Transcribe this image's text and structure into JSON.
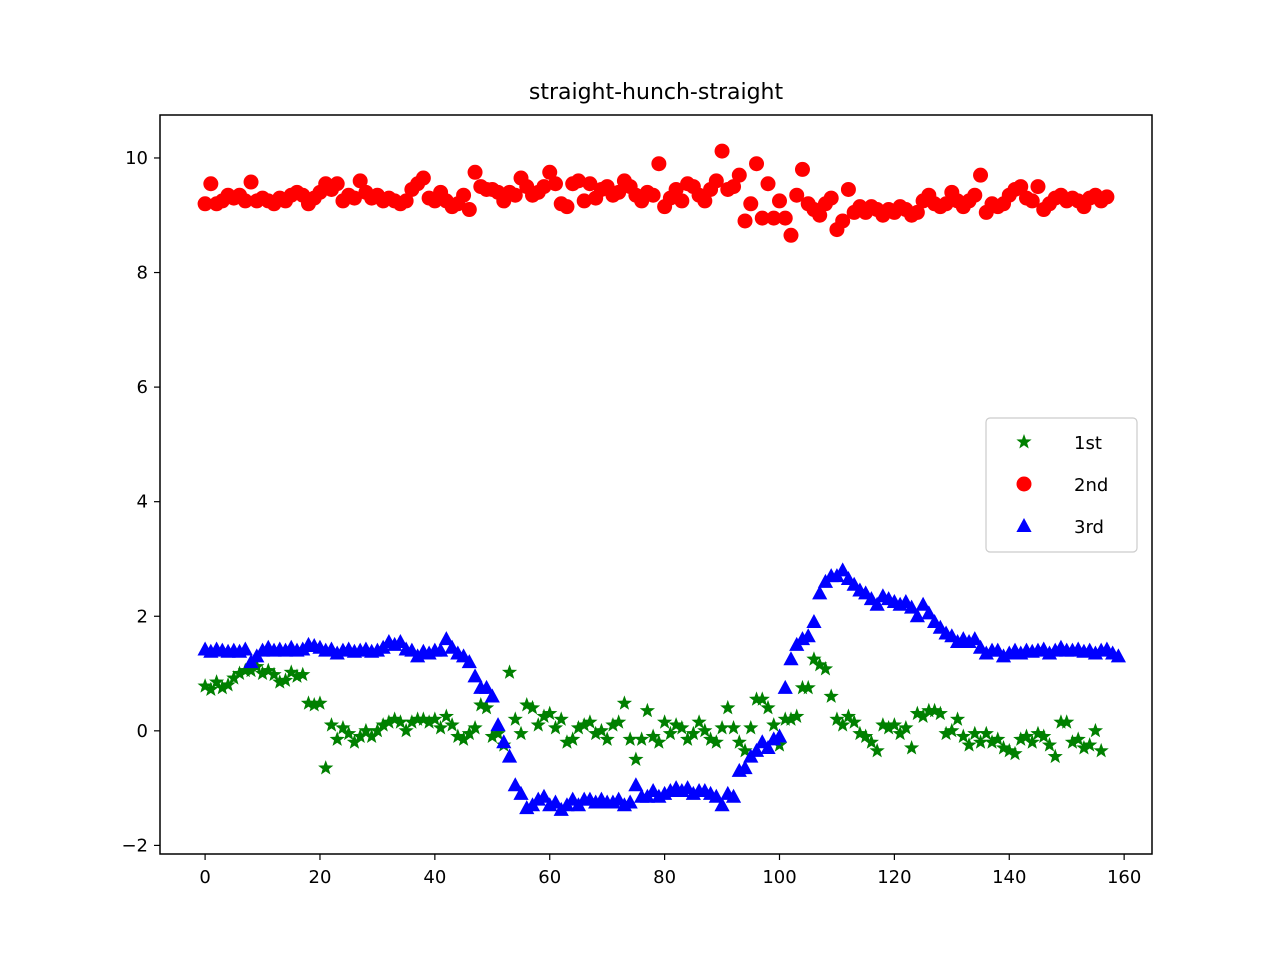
{
  "chart_data": {
    "type": "scatter",
    "title": "straight-hunch-straight",
    "xlabel": "",
    "ylabel": "",
    "xlim": [
      -7.85,
      164.85
    ],
    "ylim": [
      -2.15,
      10.75
    ],
    "xticks": [
      0,
      20,
      40,
      60,
      80,
      100,
      120,
      140,
      160
    ],
    "yticks": [
      -2,
      0,
      2,
      4,
      6,
      8,
      10
    ],
    "grid": false,
    "legend": {
      "position": "center-right"
    },
    "series": [
      {
        "name": "1st",
        "marker": "star",
        "color": "#008000",
        "values": [
          0.78,
          0.72,
          0.85,
          0.75,
          0.8,
          0.92,
          1.0,
          1.05,
          1.05,
          1.12,
          1.0,
          1.05,
          0.98,
          0.85,
          0.88,
          1.02,
          0.95,
          0.98,
          0.48,
          0.45,
          0.48,
          -0.65,
          0.1,
          -0.15,
          0.05,
          -0.05,
          -0.2,
          -0.1,
          0.0,
          -0.1,
          0.0,
          0.1,
          0.15,
          0.2,
          0.15,
          0.0,
          0.15,
          0.2,
          0.2,
          0.15,
          0.2,
          0.05,
          0.25,
          0.1,
          -0.1,
          -0.15,
          -0.05,
          0.05,
          0.45,
          0.4,
          -0.1,
          -0.05,
          -0.25,
          1.02,
          0.2,
          -0.05,
          0.45,
          0.4,
          0.1,
          0.25,
          0.3,
          0.05,
          0.2,
          -0.2,
          -0.15,
          0.05,
          0.1,
          0.15,
          -0.05,
          0.0,
          -0.15,
          0.1,
          0.15,
          0.48,
          -0.15,
          -0.5,
          -0.15,
          0.35,
          -0.1,
          -0.2,
          0.15,
          -0.05,
          0.1,
          0.05,
          -0.15,
          -0.05,
          0.15,
          0.0,
          -0.15,
          -0.2,
          0.05,
          0.4,
          0.05,
          -0.2,
          -0.35,
          0.05,
          0.55,
          0.55,
          0.4,
          0.1,
          -0.25,
          0.2,
          0.2,
          0.25,
          0.75,
          0.75,
          1.25,
          1.15,
          1.08,
          0.6,
          0.2,
          0.1,
          0.25,
          0.15,
          -0.05,
          -0.1,
          -0.2,
          -0.35,
          0.1,
          0.05,
          0.1,
          -0.05,
          0.05,
          -0.3,
          0.3,
          0.25,
          0.35,
          0.35,
          0.3,
          -0.05,
          0.0,
          0.2,
          -0.1,
          -0.25,
          -0.05,
          -0.2,
          -0.05,
          -0.2,
          -0.15,
          -0.3,
          -0.35,
          -0.4,
          -0.15,
          -0.1,
          -0.2,
          -0.05,
          -0.1,
          -0.25,
          -0.45,
          0.15,
          0.15,
          -0.2,
          -0.15,
          -0.3,
          -0.25,
          0.0,
          -0.35
        ]
      },
      {
        "name": "2nd",
        "marker": "circle",
        "color": "#ff0000",
        "values": [
          9.2,
          9.55,
          9.2,
          9.25,
          9.35,
          9.3,
          9.35,
          9.25,
          9.58,
          9.25,
          9.3,
          9.25,
          9.2,
          9.3,
          9.25,
          9.35,
          9.4,
          9.35,
          9.2,
          9.3,
          9.4,
          9.55,
          9.45,
          9.55,
          9.25,
          9.35,
          9.3,
          9.6,
          9.4,
          9.3,
          9.35,
          9.25,
          9.3,
          9.25,
          9.2,
          9.25,
          9.45,
          9.55,
          9.65,
          9.3,
          9.25,
          9.4,
          9.25,
          9.15,
          9.2,
          9.35,
          9.1,
          9.75,
          9.5,
          9.45,
          9.45,
          9.4,
          9.25,
          9.4,
          9.35,
          9.65,
          9.5,
          9.35,
          9.4,
          9.5,
          9.75,
          9.55,
          9.2,
          9.15,
          9.55,
          9.6,
          9.25,
          9.55,
          9.3,
          9.45,
          9.5,
          9.35,
          9.4,
          9.6,
          9.5,
          9.35,
          9.25,
          9.4,
          9.35,
          9.9,
          9.15,
          9.3,
          9.45,
          9.25,
          9.55,
          9.5,
          9.35,
          9.25,
          9.45,
          9.6,
          10.12,
          9.45,
          9.5,
          9.7,
          8.9,
          9.2,
          9.9,
          8.95,
          9.55,
          8.95,
          9.25,
          8.95,
          8.65,
          9.35,
          9.8,
          9.2,
          9.1,
          9.0,
          9.2,
          9.3,
          8.75,
          8.9,
          9.45,
          9.05,
          9.15,
          9.05,
          9.15,
          9.1,
          9.0,
          9.1,
          9.05,
          9.15,
          9.1,
          9.0,
          9.05,
          9.25,
          9.35,
          9.2,
          9.15,
          9.2,
          9.4,
          9.25,
          9.15,
          9.25,
          9.35,
          9.7,
          9.05,
          9.2,
          9.15,
          9.2,
          9.35,
          9.45,
          9.5,
          9.3,
          9.25,
          9.5,
          9.1,
          9.2,
          9.3,
          9.35,
          9.25,
          9.3,
          9.25,
          9.15,
          9.3,
          9.35,
          9.25,
          9.32
        ]
      },
      {
        "name": "3rd",
        "marker": "triangle",
        "color": "#0000ff",
        "values": [
          1.42,
          1.38,
          1.42,
          1.4,
          1.38,
          1.4,
          1.38,
          1.42,
          1.2,
          1.3,
          1.4,
          1.45,
          1.4,
          1.42,
          1.4,
          1.45,
          1.4,
          1.42,
          1.5,
          1.48,
          1.45,
          1.4,
          1.42,
          1.35,
          1.4,
          1.42,
          1.38,
          1.4,
          1.42,
          1.38,
          1.4,
          1.45,
          1.55,
          1.5,
          1.55,
          1.42,
          1.4,
          1.3,
          1.38,
          1.35,
          1.4,
          1.4,
          1.6,
          1.45,
          1.35,
          1.3,
          1.2,
          0.95,
          0.75,
          0.75,
          0.6,
          0.1,
          -0.2,
          -0.45,
          -0.95,
          -1.1,
          -1.35,
          -1.3,
          -1.2,
          -1.15,
          -1.3,
          -1.25,
          -1.38,
          -1.3,
          -1.2,
          -1.3,
          -1.2,
          -1.2,
          -1.25,
          -1.2,
          -1.25,
          -1.25,
          -1.2,
          -1.3,
          -1.25,
          -0.95,
          -1.15,
          -1.15,
          -1.05,
          -1.15,
          -1.1,
          -1.05,
          -1.0,
          -1.05,
          -1.0,
          -1.1,
          -1.05,
          -1.05,
          -1.1,
          -1.15,
          -1.3,
          -1.1,
          -1.15,
          -0.7,
          -0.65,
          -0.45,
          -0.35,
          -0.2,
          -0.3,
          -0.15,
          -0.1,
          0.75,
          1.25,
          1.5,
          1.6,
          1.65,
          1.9,
          2.4,
          2.6,
          2.7,
          2.7,
          2.8,
          2.65,
          2.55,
          2.45,
          2.4,
          2.3,
          2.2,
          2.35,
          2.3,
          2.25,
          2.2,
          2.25,
          2.15,
          2.0,
          2.2,
          2.05,
          1.9,
          1.8,
          1.7,
          1.65,
          1.55,
          1.6,
          1.55,
          1.6,
          1.45,
          1.35,
          1.4,
          1.4,
          1.3,
          1.35,
          1.4,
          1.35,
          1.4,
          1.38,
          1.4,
          1.42,
          1.35,
          1.4,
          1.45,
          1.4,
          1.4,
          1.42,
          1.38,
          1.4,
          1.35,
          1.4,
          1.42,
          1.35,
          1.3
        ]
      }
    ]
  }
}
